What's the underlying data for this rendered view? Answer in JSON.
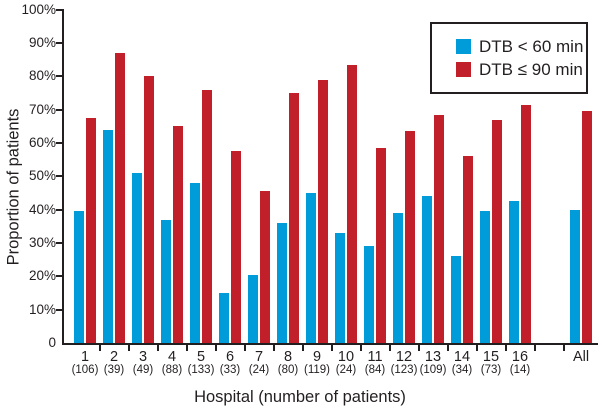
{
  "chart_data": {
    "type": "bar",
    "title": "",
    "xlabel": "Hospital (number of patients)",
    "ylabel": "Proportion of patients",
    "ylim": [
      0,
      100
    ],
    "grid": false,
    "legend_position": "top-right",
    "y_tick_labels": [
      "100%",
      "90%",
      "80%",
      "70%",
      "60%",
      "50%",
      "40%",
      "30%",
      "20%",
      "10%",
      "0"
    ],
    "categories": [
      "1",
      "2",
      "3",
      "4",
      "5",
      "6",
      "7",
      "8",
      "9",
      "10",
      "11",
      "12",
      "13",
      "14",
      "15",
      "16",
      "All"
    ],
    "patient_counts": [
      "(106)",
      "(39)",
      "(49)",
      "(88)",
      "(133)",
      "(33)",
      "(24)",
      "(80)",
      "(119)",
      "(24)",
      "(84)",
      "(123)",
      "(109)",
      "(34)",
      "(73)",
      "(14)",
      ""
    ],
    "series": [
      {
        "name": "DTB < 60 min",
        "color": "#009bd9",
        "values": [
          39.5,
          64,
          51,
          37,
          48,
          15,
          20.5,
          36,
          45,
          33,
          29,
          39,
          44,
          26,
          39.5,
          42.5,
          40
        ]
      },
      {
        "name": "DTB ≤ 90 min",
        "color": "#c1202b",
        "values": [
          67.5,
          87,
          80,
          65,
          76,
          57.5,
          45.5,
          75,
          79,
          83.5,
          58.5,
          63.5,
          68.5,
          56,
          67,
          71.5,
          69.5
        ]
      }
    ]
  },
  "colors": {
    "axis": "#231f20",
    "background": "#ffffff"
  }
}
